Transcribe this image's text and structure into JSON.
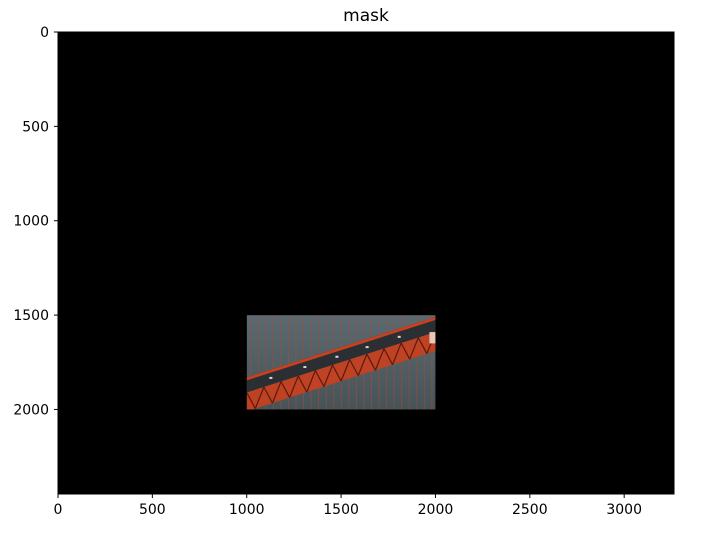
{
  "chart_data": {
    "type": "image",
    "title": "mask",
    "xlabel": "",
    "ylabel": "",
    "xlim": [
      0,
      3264
    ],
    "ylim": [
      2448,
      0
    ],
    "x_ticks": [
      0,
      500,
      1000,
      1500,
      2000,
      2500,
      3000
    ],
    "y_ticks": [
      0,
      500,
      1000,
      1500,
      2000
    ],
    "x_tick_labels": [
      "0",
      "500",
      "1000",
      "1500",
      "2000",
      "2500",
      "3000"
    ],
    "y_tick_labels": [
      "0",
      "500",
      "1000",
      "1500",
      "2000"
    ],
    "grid": false,
    "background_color": "#000000",
    "visible_region": {
      "x": [
        1000,
        2000
      ],
      "y": [
        1500,
        2000
      ],
      "content": "bridge-photo-crop"
    },
    "colors": {
      "mask": "#000000",
      "water": "#4e5c64",
      "bridge": "#c8401e",
      "cables": "#b04a2c",
      "deck": "#2b2f33"
    }
  }
}
